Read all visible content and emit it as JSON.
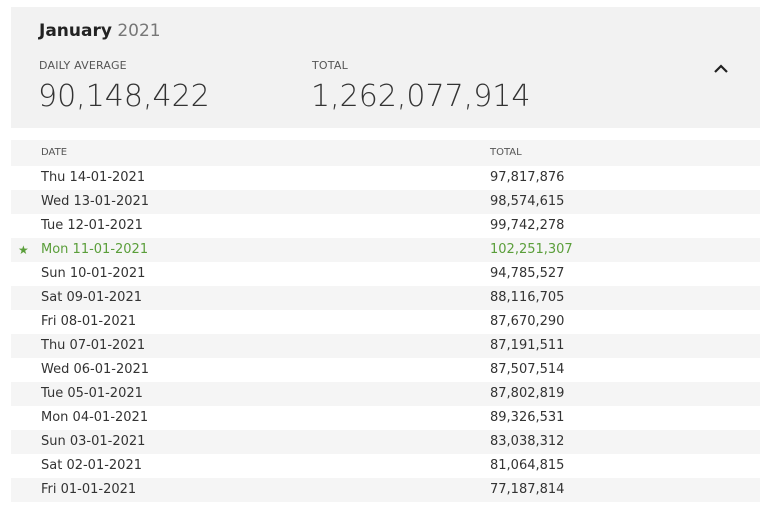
{
  "header": {
    "month": "January",
    "year": "2021"
  },
  "summary": {
    "daily_average": {
      "label": "DAILY AVERAGE",
      "value": "90,148,422"
    },
    "total": {
      "label": "TOTAL",
      "value": "1,262,077,914"
    }
  },
  "table": {
    "columns": [
      "DATE",
      "TOTAL"
    ],
    "highlight_row": 3,
    "rows": [
      [
        "Thu 14-01-2021",
        "97,817,876"
      ],
      [
        "Wed 13-01-2021",
        "98,574,615"
      ],
      [
        "Tue 12-01-2021",
        "99,742,278"
      ],
      [
        "Mon 11-01-2021",
        "102,251,307"
      ],
      [
        "Sun 10-01-2021",
        "94,785,527"
      ],
      [
        "Sat 09-01-2021",
        "88,116,705"
      ],
      [
        "Fri 08-01-2021",
        "87,670,290"
      ],
      [
        "Thu 07-01-2021",
        "87,191,511"
      ],
      [
        "Wed 06-01-2021",
        "87,507,514"
      ],
      [
        "Tue 05-01-2021",
        "87,802,819"
      ],
      [
        "Mon 04-01-2021",
        "89,326,531"
      ],
      [
        "Sun 03-01-2021",
        "83,038,312"
      ],
      [
        "Sat 02-01-2021",
        "81,064,815"
      ],
      [
        "Fri 01-01-2021",
        "77,187,814"
      ]
    ]
  }
}
